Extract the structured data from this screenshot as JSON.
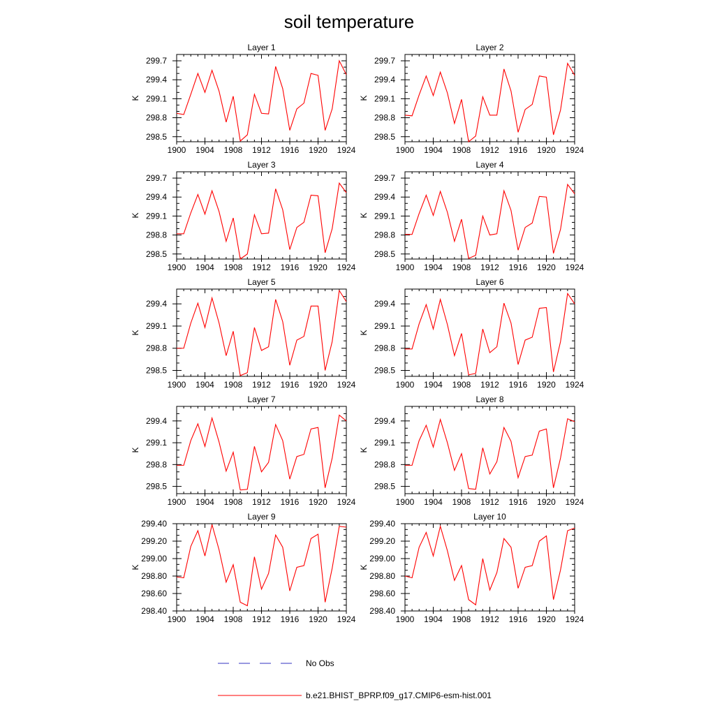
{
  "title": "soil temperature",
  "legend": {
    "obs_label": "No Obs",
    "obs_color": "#3030c0",
    "model_label": "b.e21.BHIST_BPRP.f09_g17.CMIP6-esm-hist.001",
    "model_color": "#ff0000"
  },
  "chart_data": [
    {
      "type": "line",
      "title": "Layer 1",
      "ylabel": "K",
      "xlim": [
        1900,
        1924
      ],
      "ylim": [
        298.42,
        299.8
      ],
      "xticks": [
        1900,
        1904,
        1908,
        1912,
        1916,
        1920,
        1924
      ],
      "yticks": [
        298.5,
        298.8,
        299.1,
        299.4,
        299.7
      ],
      "ytick_labels": [
        "298.5",
        "298.8",
        "299.1",
        "299.4",
        "299.7"
      ],
      "series": [
        {
          "color": "#ff0000",
          "x": [
            1900,
            1901,
            1902,
            1903,
            1904,
            1905,
            1906,
            1907,
            1908,
            1909,
            1910,
            1911,
            1912,
            1913,
            1914,
            1915,
            1916,
            1917,
            1918,
            1919,
            1920,
            1921,
            1922,
            1923,
            1924
          ],
          "values": [
            298.87,
            298.85,
            299.17,
            299.5,
            299.2,
            299.55,
            299.22,
            298.73,
            299.14,
            298.43,
            298.53,
            299.17,
            298.87,
            298.86,
            299.61,
            299.26,
            298.6,
            298.94,
            299.03,
            299.5,
            299.47,
            298.6,
            298.94,
            299.7,
            299.48
          ]
        }
      ]
    },
    {
      "type": "line",
      "title": "Layer 2",
      "ylabel": "K",
      "xlim": [
        1900,
        1924
      ],
      "ylim": [
        298.42,
        299.8
      ],
      "xticks": [
        1900,
        1904,
        1908,
        1912,
        1916,
        1920,
        1924
      ],
      "yticks": [
        298.5,
        298.8,
        299.1,
        299.4,
        299.7
      ],
      "ytick_labels": [
        "298.5",
        "298.8",
        "299.1",
        "299.4",
        "299.7"
      ],
      "series": [
        {
          "color": "#ff0000",
          "x": [
            1900,
            1901,
            1902,
            1903,
            1904,
            1905,
            1906,
            1907,
            1908,
            1909,
            1910,
            1911,
            1912,
            1913,
            1914,
            1915,
            1916,
            1917,
            1918,
            1919,
            1920,
            1921,
            1922,
            1923,
            1924
          ],
          "values": [
            298.84,
            298.83,
            299.16,
            299.46,
            299.15,
            299.52,
            299.19,
            298.71,
            299.09,
            298.42,
            298.51,
            299.13,
            298.84,
            298.84,
            299.57,
            299.22,
            298.57,
            298.93,
            299.01,
            299.46,
            299.44,
            298.53,
            298.92,
            299.66,
            299.47
          ]
        }
      ]
    },
    {
      "type": "line",
      "title": "Layer 3",
      "ylabel": "K",
      "xlim": [
        1900,
        1924
      ],
      "ylim": [
        298.42,
        299.8
      ],
      "xticks": [
        1900,
        1904,
        1908,
        1912,
        1916,
        1920,
        1924
      ],
      "yticks": [
        298.5,
        298.8,
        299.1,
        299.4,
        299.7
      ],
      "ytick_labels": [
        "298.5",
        "298.8",
        "299.1",
        "299.4",
        "299.7"
      ],
      "series": [
        {
          "color": "#ff0000",
          "x": [
            1900,
            1901,
            1902,
            1903,
            1904,
            1905,
            1906,
            1907,
            1908,
            1909,
            1910,
            1911,
            1912,
            1913,
            1914,
            1915,
            1916,
            1917,
            1918,
            1919,
            1920,
            1921,
            1922,
            1923,
            1924
          ],
          "values": [
            298.82,
            298.82,
            299.15,
            299.44,
            299.13,
            299.5,
            299.17,
            298.7,
            299.07,
            298.42,
            298.5,
            299.12,
            298.82,
            298.83,
            299.53,
            299.2,
            298.57,
            298.92,
            299.0,
            299.43,
            299.42,
            298.52,
            298.9,
            299.62,
            299.47
          ]
        }
      ]
    },
    {
      "type": "line",
      "title": "Layer 4",
      "ylabel": "K",
      "xlim": [
        1900,
        1924
      ],
      "ylim": [
        298.42,
        299.8
      ],
      "xticks": [
        1900,
        1904,
        1908,
        1912,
        1916,
        1920,
        1924
      ],
      "yticks": [
        298.5,
        298.8,
        299.1,
        299.4,
        299.7
      ],
      "ytick_labels": [
        "298.5",
        "298.8",
        "299.1",
        "299.4",
        "299.7"
      ],
      "series": [
        {
          "color": "#ff0000",
          "x": [
            1900,
            1901,
            1902,
            1903,
            1904,
            1905,
            1906,
            1907,
            1908,
            1909,
            1910,
            1911,
            1912,
            1913,
            1914,
            1915,
            1916,
            1917,
            1918,
            1919,
            1920,
            1921,
            1922,
            1923,
            1924
          ],
          "values": [
            298.81,
            298.81,
            299.14,
            299.43,
            299.11,
            299.49,
            299.16,
            298.7,
            299.05,
            298.43,
            298.48,
            299.1,
            298.8,
            298.82,
            299.5,
            299.19,
            298.56,
            298.92,
            298.99,
            299.41,
            299.4,
            298.51,
            298.89,
            299.6,
            299.45
          ]
        }
      ]
    },
    {
      "type": "line",
      "title": "Layer 5",
      "ylabel": "K",
      "xlim": [
        1900,
        1924
      ],
      "ylim": [
        298.42,
        299.6
      ],
      "xticks": [
        1900,
        1904,
        1908,
        1912,
        1916,
        1920,
        1924
      ],
      "yticks": [
        298.5,
        298.8,
        299.1,
        299.4
      ],
      "ytick_labels": [
        "298.5",
        "298.8",
        "299.1",
        "299.4"
      ],
      "series": [
        {
          "color": "#ff0000",
          "x": [
            1900,
            1901,
            1902,
            1903,
            1904,
            1905,
            1906,
            1907,
            1908,
            1909,
            1910,
            1911,
            1912,
            1913,
            1914,
            1915,
            1916,
            1917,
            1918,
            1919,
            1920,
            1921,
            1922,
            1923,
            1924
          ],
          "values": [
            298.8,
            298.8,
            299.14,
            299.41,
            299.08,
            299.48,
            299.14,
            298.7,
            299.03,
            298.43,
            298.47,
            299.08,
            298.77,
            298.82,
            299.46,
            299.16,
            298.57,
            298.91,
            298.96,
            299.37,
            299.37,
            298.5,
            298.89,
            299.58,
            299.43
          ]
        }
      ]
    },
    {
      "type": "line",
      "title": "Layer 6",
      "ylabel": "K",
      "xlim": [
        1900,
        1924
      ],
      "ylim": [
        298.42,
        299.6
      ],
      "xticks": [
        1900,
        1904,
        1908,
        1912,
        1916,
        1920,
        1924
      ],
      "yticks": [
        298.5,
        298.8,
        299.1,
        299.4
      ],
      "ytick_labels": [
        "298.5",
        "298.8",
        "299.1",
        "299.4"
      ],
      "series": [
        {
          "color": "#ff0000",
          "x": [
            1900,
            1901,
            1902,
            1903,
            1904,
            1905,
            1906,
            1907,
            1908,
            1909,
            1910,
            1911,
            1912,
            1913,
            1914,
            1915,
            1916,
            1917,
            1918,
            1919,
            1920,
            1921,
            1922,
            1923,
            1924
          ],
          "values": [
            298.79,
            298.79,
            299.13,
            299.39,
            299.06,
            299.46,
            299.12,
            298.7,
            299.0,
            298.44,
            298.46,
            299.06,
            298.74,
            298.82,
            299.41,
            299.14,
            298.58,
            298.91,
            298.95,
            299.34,
            299.35,
            298.48,
            298.89,
            299.54,
            299.4
          ]
        }
      ]
    },
    {
      "type": "line",
      "title": "Layer 7",
      "ylabel": "K",
      "xlim": [
        1900,
        1924
      ],
      "ylim": [
        298.4,
        299.6
      ],
      "xticks": [
        1900,
        1904,
        1908,
        1912,
        1916,
        1920,
        1924
      ],
      "yticks": [
        298.5,
        298.8,
        299.1,
        299.4
      ],
      "ytick_labels": [
        "298.5",
        "298.8",
        "299.1",
        "299.4"
      ],
      "series": [
        {
          "color": "#ff0000",
          "x": [
            1900,
            1901,
            1902,
            1903,
            1904,
            1905,
            1906,
            1907,
            1908,
            1909,
            1910,
            1911,
            1912,
            1913,
            1914,
            1915,
            1916,
            1917,
            1918,
            1919,
            1920,
            1921,
            1922,
            1923,
            1924
          ],
          "values": [
            298.79,
            298.79,
            299.13,
            299.36,
            299.05,
            299.44,
            299.11,
            298.71,
            298.97,
            298.45,
            298.46,
            299.05,
            298.7,
            298.83,
            299.35,
            299.13,
            298.6,
            298.91,
            298.94,
            299.29,
            299.31,
            298.48,
            298.89,
            299.48,
            299.4
          ]
        }
      ]
    },
    {
      "type": "line",
      "title": "Layer 8",
      "ylabel": "K",
      "xlim": [
        1900,
        1924
      ],
      "ylim": [
        298.4,
        299.6
      ],
      "xticks": [
        1900,
        1904,
        1908,
        1912,
        1916,
        1920,
        1924
      ],
      "yticks": [
        298.5,
        298.8,
        299.1,
        299.4
      ],
      "ytick_labels": [
        "298.5",
        "298.8",
        "299.1",
        "299.4"
      ],
      "series": [
        {
          "color": "#ff0000",
          "x": [
            1900,
            1901,
            1902,
            1903,
            1904,
            1905,
            1906,
            1907,
            1908,
            1909,
            1910,
            1911,
            1912,
            1913,
            1914,
            1915,
            1916,
            1917,
            1918,
            1919,
            1920,
            1921,
            1922,
            1923,
            1924
          ],
          "values": [
            298.79,
            298.79,
            299.13,
            299.34,
            299.04,
            299.42,
            299.1,
            298.72,
            298.95,
            298.47,
            298.46,
            299.03,
            298.67,
            298.84,
            299.31,
            299.12,
            298.62,
            298.91,
            298.93,
            299.26,
            299.29,
            298.48,
            298.89,
            299.43,
            299.39
          ]
        }
      ]
    },
    {
      "type": "line",
      "title": "Layer 9",
      "ylabel": "K",
      "xlim": [
        1900,
        1924
      ],
      "ylim": [
        298.4,
        299.4
      ],
      "xticks": [
        1900,
        1904,
        1908,
        1912,
        1916,
        1920,
        1924
      ],
      "yticks": [
        298.4,
        298.6,
        298.8,
        299.0,
        299.2,
        299.4
      ],
      "ytick_labels": [
        "298.40",
        "298.60",
        "298.80",
        "299.00",
        "299.20",
        "299.40"
      ],
      "series": [
        {
          "color": "#ff0000",
          "x": [
            1900,
            1901,
            1902,
            1903,
            1904,
            1905,
            1906,
            1907,
            1908,
            1909,
            1910,
            1911,
            1912,
            1913,
            1914,
            1915,
            1916,
            1917,
            1918,
            1919,
            1920,
            1921,
            1922,
            1923,
            1924
          ],
          "values": [
            298.79,
            298.78,
            299.14,
            299.32,
            299.03,
            299.39,
            299.1,
            298.73,
            298.93,
            298.5,
            298.46,
            299.02,
            298.65,
            298.83,
            299.27,
            299.13,
            298.63,
            298.9,
            298.92,
            299.23,
            299.28,
            298.5,
            298.89,
            299.37,
            299.36
          ]
        }
      ]
    },
    {
      "type": "line",
      "title": "Layer 10",
      "ylabel": "K",
      "xlim": [
        1900,
        1924
      ],
      "ylim": [
        298.4,
        299.4
      ],
      "xticks": [
        1900,
        1904,
        1908,
        1912,
        1916,
        1920,
        1924
      ],
      "yticks": [
        298.4,
        298.6,
        298.8,
        299.0,
        299.2,
        299.4
      ],
      "ytick_labels": [
        "298.40",
        "298.60",
        "298.80",
        "299.00",
        "299.20",
        "299.40"
      ],
      "series": [
        {
          "color": "#ff0000",
          "x": [
            1900,
            1901,
            1902,
            1903,
            1904,
            1905,
            1906,
            1907,
            1908,
            1909,
            1910,
            1911,
            1912,
            1913,
            1914,
            1915,
            1916,
            1917,
            1918,
            1919,
            1920,
            1921,
            1922,
            1923,
            1924
          ],
          "values": [
            298.8,
            298.78,
            299.13,
            299.3,
            299.03,
            299.37,
            299.09,
            298.75,
            298.92,
            298.53,
            298.47,
            299.0,
            298.64,
            298.84,
            299.23,
            299.13,
            298.66,
            298.9,
            298.92,
            299.2,
            299.26,
            298.53,
            298.87,
            299.32,
            299.35
          ]
        }
      ]
    }
  ]
}
